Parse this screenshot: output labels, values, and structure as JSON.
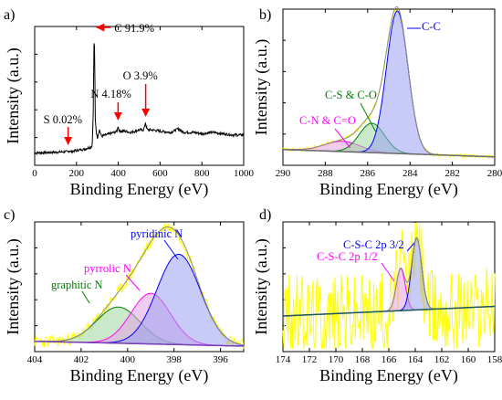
{
  "colors": {
    "axis": "#000000",
    "survey": "#000000",
    "arrow": "#ff0000",
    "raw": "#ffff00",
    "envelope": "#8c8c8c",
    "baseline_c1s": "#6e6e6e",
    "baseline_n1s": "#7b3fb8",
    "baseline_s2p": "#1f5a5a",
    "blue": "#0000ff",
    "green": "#008000",
    "magenta": "#ff00ff",
    "fill_blue": "#9aa0f0",
    "fill_green": "#9fd59f",
    "fill_magenta": "#e3a3e3"
  },
  "chart_data": [
    {
      "panel": "a)",
      "type": "line",
      "xlabel": "Binding Energy (eV)",
      "ylabel": "Intensity (a.u.)",
      "xlim": [
        0,
        1000
      ],
      "xticks": [
        "0",
        "200",
        "400",
        "600",
        "800",
        "1000"
      ],
      "series": [
        {
          "x": [
            0,
            100,
            160,
            165,
            170,
            240,
            275,
            280,
            283,
            285,
            288,
            290,
            295,
            300,
            310,
            320,
            340,
            360,
            380,
            395,
            399,
            402,
            410,
            430,
            460,
            500,
            520,
            527,
            530,
            533,
            540,
            560,
            600,
            650,
            690,
            700,
            720,
            760,
            800,
            850,
            900,
            950,
            1000
          ],
          "y": [
            0.04,
            0.045,
            0.05,
            0.06,
            0.05,
            0.07,
            0.09,
            0.35,
            0.8,
            1.0,
            0.6,
            0.3,
            0.2,
            0.16,
            0.22,
            0.17,
            0.18,
            0.19,
            0.2,
            0.21,
            0.26,
            0.22,
            0.21,
            0.21,
            0.2,
            0.22,
            0.22,
            0.25,
            0.28,
            0.25,
            0.22,
            0.22,
            0.21,
            0.2,
            0.23,
            0.21,
            0.2,
            0.2,
            0.19,
            0.2,
            0.19,
            0.18,
            0.18
          ]
        }
      ],
      "annotations": [
        {
          "text": "C 91.9%",
          "x": 285
        },
        {
          "text": "N 4.18%",
          "x": 399
        },
        {
          "text": "O 3.9%",
          "x": 531
        },
        {
          "text": "S 0.02%",
          "x": 160
        }
      ]
    },
    {
      "panel": "b)",
      "type": "area",
      "xlabel": "Binding Energy (eV)",
      "ylabel": "Intensity (a.u.)",
      "xlim": [
        290,
        280
      ],
      "xticks": [
        "290",
        "288",
        "286",
        "284",
        "282",
        "280"
      ],
      "series": [
        {
          "name": "C-C",
          "type": "peak",
          "center": 284.6,
          "fwhm": 1.2,
          "height": 0.97,
          "color": "blue"
        },
        {
          "name": "C-S & C-O",
          "type": "peak",
          "center": 285.8,
          "fwhm": 1.4,
          "height": 0.2,
          "color": "green"
        },
        {
          "name": "C-N & C=O",
          "type": "peak",
          "center": 287.2,
          "fwhm": 2.0,
          "height": 0.07,
          "color": "magenta"
        }
      ],
      "annotations": [
        {
          "text": "C-C",
          "x": 284.6
        },
        {
          "text": "C-S & C-O",
          "x": 285.8
        },
        {
          "text": "C-N & C=O",
          "x": 287.2
        }
      ]
    },
    {
      "panel": "c)",
      "type": "area",
      "xlabel": "Binding Energy (eV)",
      "ylabel": "Intensity (a.u.)",
      "xlim": [
        404,
        395
      ],
      "xticks": [
        "404",
        "402",
        "400",
        "398",
        "396"
      ],
      "series": [
        {
          "name": "pyridinic N",
          "type": "peak",
          "center": 397.8,
          "fwhm": 2.2,
          "height": 0.75,
          "color": "blue"
        },
        {
          "name": "pyrrolic N",
          "type": "peak",
          "center": 399.0,
          "fwhm": 2.0,
          "height": 0.42,
          "color": "magenta"
        },
        {
          "name": "graphitic N",
          "type": "peak",
          "center": 400.4,
          "fwhm": 2.2,
          "height": 0.3,
          "color": "green"
        }
      ],
      "annotations": [
        {
          "text": "pyridinic N",
          "x": 397.8
        },
        {
          "text": "pyrrolic N",
          "x": 399.0
        },
        {
          "text": "graphitic N",
          "x": 400.4
        }
      ]
    },
    {
      "panel": "d)",
      "type": "area",
      "xlabel": "Binding Energy (eV)",
      "ylabel": "Intensity (a.u.)",
      "xlim": [
        174,
        158
      ],
      "xticks": [
        "174",
        "172",
        "170",
        "168",
        "166",
        "164",
        "162",
        "160",
        "158"
      ],
      "series": [
        {
          "name": "C-S-C 2p 3/2",
          "type": "peak",
          "center": 163.9,
          "fwhm": 0.9,
          "height": 0.6,
          "color": "blue"
        },
        {
          "name": "C-S-C 2p 1/2",
          "type": "peak",
          "center": 165.1,
          "fwhm": 0.8,
          "height": 0.35,
          "color": "magenta"
        }
      ],
      "annotations": [
        {
          "text": "C-S-C 2p 3/2",
          "x": 163.9
        },
        {
          "text": "C-S-C 2p 1/2",
          "x": 165.1
        }
      ]
    }
  ]
}
